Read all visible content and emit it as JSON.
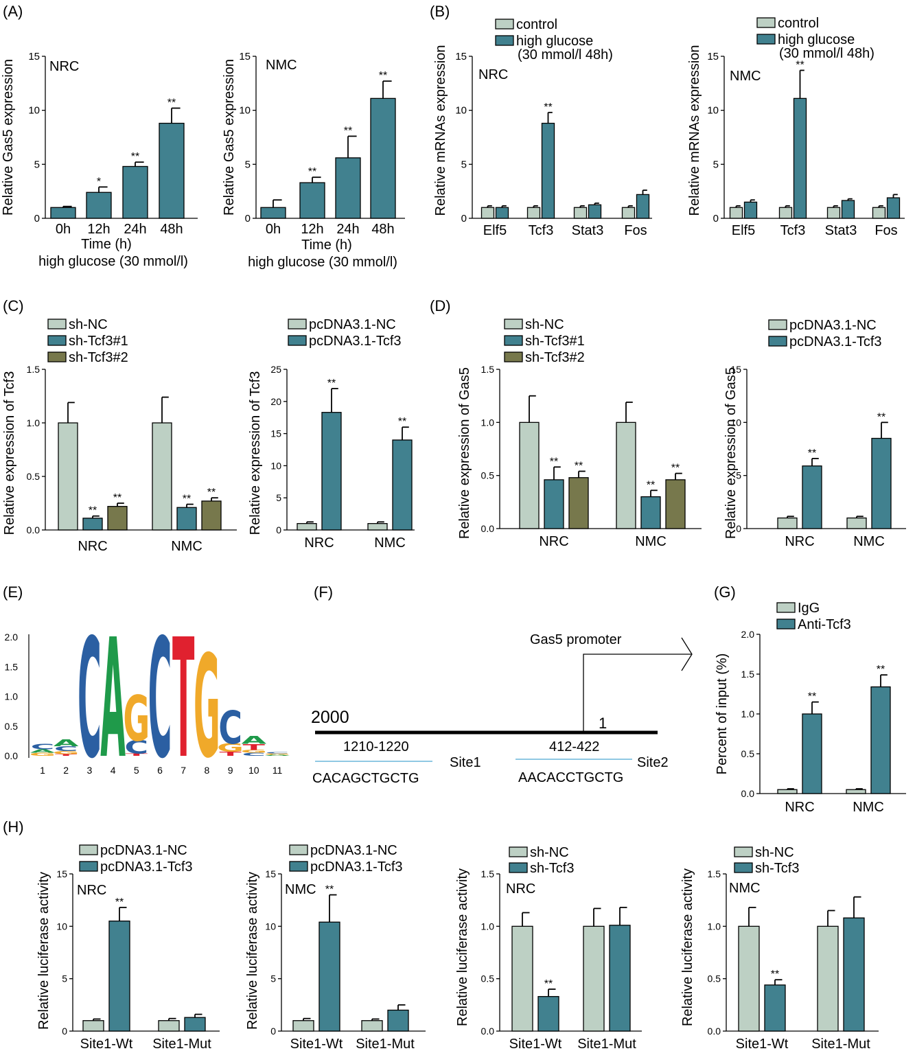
{
  "colors": {
    "control": "#bdd0c4",
    "treat": "#41818f",
    "olive": "#77784c",
    "axis": "#000000",
    "line_blue": "#8fc8e3",
    "logo": {
      "C": "#2b5fa2",
      "A": "#1f9a4a",
      "G": "#f0a92a",
      "T": "#e0212f"
    }
  },
  "panel_letters": [
    "(A)",
    "(B)",
    "(C)",
    "(D)",
    "(E)",
    "(F)",
    "(G)",
    "(H)"
  ],
  "chart_data": [
    {
      "id": "A1",
      "type": "bar",
      "panel": "(A)",
      "ylabel": "Relative Gas5 expression",
      "xlabel": "Time (h)",
      "xlabel2": "high glucose (30 mmol/l)",
      "corner_label": "NRC",
      "ylim": [
        0,
        15
      ],
      "yticks": [
        "0",
        "5",
        "10",
        "15"
      ],
      "categories": [
        "0h",
        "12h",
        "24h",
        "48h"
      ],
      "series": [
        {
          "values": [
            1.0,
            2.4,
            4.8,
            8.8
          ],
          "errors": [
            0.1,
            0.5,
            0.4,
            1.4
          ],
          "sig": [
            "",
            "*",
            "**",
            "**"
          ]
        }
      ]
    },
    {
      "id": "A2",
      "type": "bar",
      "ylabel": "Relative Gas5 expression",
      "xlabel": "Time (h)",
      "xlabel2": "high glucose (30 mmol/l)",
      "corner_label": "NMC",
      "ylim": [
        0,
        15
      ],
      "yticks": [
        "0",
        "5",
        "10",
        "15"
      ],
      "categories": [
        "0h",
        "12h",
        "24h",
        "48h"
      ],
      "series": [
        {
          "values": [
            1.0,
            3.3,
            5.6,
            11.1
          ],
          "errors": [
            0.7,
            0.5,
            2.0,
            1.6
          ],
          "sig": [
            "",
            "**",
            "**",
            "**"
          ]
        }
      ]
    },
    {
      "id": "B1",
      "type": "bar",
      "panel": "(B)",
      "ylabel": "Relative mRNAs expression",
      "corner_label": "NRC",
      "ylim": [
        0,
        15
      ],
      "yticks": [
        "0",
        "5",
        "10",
        "15"
      ],
      "categories": [
        "Elf5",
        "Tcf3",
        "Stat3",
        "Fos"
      ],
      "legend": [
        "control",
        "high glucose",
        "(30 mmol/l 48h)"
      ],
      "series": [
        {
          "name": "control",
          "values": [
            1.0,
            1.0,
            1.0,
            1.0
          ],
          "errors": [
            0.15,
            0.15,
            0.15,
            0.15
          ],
          "sig": [
            "",
            "",
            "",
            ""
          ]
        },
        {
          "name": "high glucose",
          "values": [
            1.0,
            8.8,
            1.25,
            2.2
          ],
          "errors": [
            0.15,
            1.0,
            0.15,
            0.4
          ],
          "sig": [
            "",
            "**",
            "",
            ""
          ]
        }
      ]
    },
    {
      "id": "B2",
      "type": "bar",
      "ylabel": "Relative mRNAs expression",
      "corner_label": "NMC",
      "ylim": [
        0,
        15
      ],
      "yticks": [
        "0",
        "5",
        "10",
        "15"
      ],
      "categories": [
        "Elf5",
        "Tcf3",
        "Stat3",
        "Fos"
      ],
      "legend": [
        "control",
        "high glucose",
        "(30 mmol/l 48h)"
      ],
      "series": [
        {
          "name": "control",
          "values": [
            1.0,
            1.0,
            1.0,
            1.0
          ],
          "errors": [
            0.15,
            0.15,
            0.15,
            0.15
          ],
          "sig": [
            "",
            "",
            "",
            ""
          ]
        },
        {
          "name": "high glucose",
          "values": [
            1.5,
            11.1,
            1.65,
            1.9
          ],
          "errors": [
            0.2,
            2.6,
            0.15,
            0.3
          ],
          "sig": [
            "",
            "**",
            "",
            ""
          ]
        }
      ]
    },
    {
      "id": "C1",
      "type": "bar",
      "panel": "(C)",
      "ylabel": "Relative  expression of Tcf3",
      "ylim": [
        0,
        1.5
      ],
      "yticks": [
        "0.0",
        "0.5",
        "1.0",
        "1.5"
      ],
      "categories": [
        "NRC",
        "NMC"
      ],
      "legend": [
        "sh-NC",
        "sh-Tcf3#1",
        "sh-Tcf3#2"
      ],
      "series": [
        {
          "name": "sh-NC",
          "values": [
            1.0,
            1.0
          ],
          "errors": [
            0.19,
            0.24
          ],
          "sig": [
            "",
            ""
          ]
        },
        {
          "name": "sh-Tcf3#1",
          "values": [
            0.11,
            0.21
          ],
          "errors": [
            0.02,
            0.03
          ],
          "sig": [
            "**",
            "**"
          ]
        },
        {
          "name": "sh-Tcf3#2",
          "values": [
            0.22,
            0.27
          ],
          "errors": [
            0.03,
            0.03
          ],
          "sig": [
            "**",
            "**"
          ]
        }
      ]
    },
    {
      "id": "C2",
      "type": "bar",
      "ylabel": "Relative expression of Tcf3",
      "ylim": [
        0,
        25
      ],
      "yticks": [
        "0",
        "5",
        "10",
        "15",
        "20",
        "25"
      ],
      "categories": [
        "NRC",
        "NMC"
      ],
      "legend": [
        "pcDNA3.1-NC",
        "pcDNA3.1-Tcf3"
      ],
      "series": [
        {
          "name": "pcDNA3.1-NC",
          "values": [
            1.0,
            1.0
          ],
          "errors": [
            0.25,
            0.25
          ],
          "sig": [
            "",
            ""
          ]
        },
        {
          "name": "pcDNA3.1-Tcf3",
          "values": [
            18.3,
            14.0
          ],
          "errors": [
            3.7,
            2.0
          ],
          "sig": [
            "**",
            "**"
          ]
        }
      ]
    },
    {
      "id": "D1",
      "type": "bar",
      "panel": "(D)",
      "ylabel": "Relative expression of Gas5",
      "ylim": [
        0,
        1.5
      ],
      "yticks": [
        "0.0",
        "0.5",
        "1.0",
        "1.5"
      ],
      "categories": [
        "NRC",
        "NMC"
      ],
      "legend": [
        "sh-NC",
        "sh-Tcf3#1",
        "sh-Tcf3#2"
      ],
      "series": [
        {
          "name": "sh-NC",
          "values": [
            1.0,
            1.0
          ],
          "errors": [
            0.25,
            0.19
          ],
          "sig": [
            "",
            ""
          ]
        },
        {
          "name": "sh-Tcf3#1",
          "values": [
            0.46,
            0.3
          ],
          "errors": [
            0.12,
            0.06
          ],
          "sig": [
            "**",
            "**"
          ]
        },
        {
          "name": "sh-Tcf3#2",
          "values": [
            0.48,
            0.46
          ],
          "errors": [
            0.06,
            0.06
          ],
          "sig": [
            "**",
            "**"
          ]
        }
      ]
    },
    {
      "id": "D2",
      "type": "bar",
      "ylabel": "Relative expression of  Gas5",
      "ylim": [
        0,
        15
      ],
      "yticks": [
        "0",
        "5",
        "10",
        "15"
      ],
      "categories": [
        "NRC",
        "NMC"
      ],
      "legend": [
        "pcDNA3.1-NC",
        "pcDNA3.1-Tcf3"
      ],
      "series": [
        {
          "name": "pcDNA3.1-NC",
          "values": [
            1.0,
            1.0
          ],
          "errors": [
            0.15,
            0.15
          ],
          "sig": [
            "",
            ""
          ]
        },
        {
          "name": "pcDNA3.1-Tcf3",
          "values": [
            5.9,
            8.5
          ],
          "errors": [
            0.7,
            1.5
          ],
          "sig": [
            "**",
            "**"
          ]
        }
      ]
    },
    {
      "id": "G",
      "type": "bar",
      "panel": "(G)",
      "ylabel": "Percent of input (%)",
      "ylim": [
        0,
        2.0
      ],
      "yticks": [
        "0.0",
        "0.5",
        "1.0",
        "1.5",
        "2.0"
      ],
      "categories": [
        "NRC",
        "NMC"
      ],
      "legend": [
        "IgG",
        "Anti-Tcf3"
      ],
      "series": [
        {
          "name": "IgG",
          "values": [
            0.05,
            0.05
          ],
          "errors": [
            0.01,
            0.01
          ],
          "sig": [
            "",
            ""
          ]
        },
        {
          "name": "Anti-Tcf3",
          "values": [
            1.0,
            1.34
          ],
          "errors": [
            0.15,
            0.15
          ],
          "sig": [
            "**",
            "**"
          ]
        }
      ]
    },
    {
      "id": "H1",
      "type": "bar",
      "panel": "(H)",
      "ylabel": "Relative luciferase activity",
      "corner_label": "NRC",
      "ylim": [
        0,
        15
      ],
      "yticks": [
        "0",
        "5",
        "10",
        "15"
      ],
      "categories": [
        "Site1-Wt",
        "Site1-Mut"
      ],
      "legend": [
        "pcDNA3.1-NC",
        "pcDNA3.1-Tcf3"
      ],
      "series": [
        {
          "name": "pcDNA3.1-NC",
          "values": [
            1.0,
            1.0
          ],
          "errors": [
            0.15,
            0.2
          ],
          "sig": [
            "",
            ""
          ]
        },
        {
          "name": "pcDNA3.1-Tcf3",
          "values": [
            10.5,
            1.3
          ],
          "errors": [
            1.3,
            0.3
          ],
          "sig": [
            "**",
            ""
          ]
        }
      ]
    },
    {
      "id": "H2",
      "type": "bar",
      "ylabel": "Relative luciferase activity",
      "corner_label": "NMC",
      "ylim": [
        0,
        15
      ],
      "yticks": [
        "0",
        "5",
        "10",
        "15"
      ],
      "categories": [
        "Site1-Wt",
        "Site1-Mut"
      ],
      "legend": [
        "pcDNA3.1-NC",
        "pcDNA3.1-Tcf3"
      ],
      "series": [
        {
          "name": "pcDNA3.1-NC",
          "values": [
            1.0,
            1.0
          ],
          "errors": [
            0.2,
            0.15
          ],
          "sig": [
            "",
            ""
          ]
        },
        {
          "name": "pcDNA3.1-Tcf3",
          "values": [
            10.4,
            2.0
          ],
          "errors": [
            2.6,
            0.5
          ],
          "sig": [
            "**",
            ""
          ]
        }
      ]
    },
    {
      "id": "H3",
      "type": "bar",
      "ylabel": "Relative luciferase activity",
      "corner_label": "NRC",
      "ylim": [
        0,
        1.5
      ],
      "yticks": [
        "0.0",
        "0.5",
        "1.0",
        "1.5"
      ],
      "categories": [
        "Site1-Wt",
        "Site1-Mut"
      ],
      "legend": [
        "sh-NC",
        "sh-Tcf3"
      ],
      "series": [
        {
          "name": "sh-NC",
          "values": [
            1.0,
            1.0
          ],
          "errors": [
            0.13,
            0.17
          ],
          "sig": [
            "",
            ""
          ]
        },
        {
          "name": "sh-Tcf3",
          "values": [
            0.33,
            1.01
          ],
          "errors": [
            0.07,
            0.17
          ],
          "sig": [
            "**",
            ""
          ]
        }
      ]
    },
    {
      "id": "H4",
      "type": "bar",
      "ylabel": "Relative luciferase activity",
      "corner_label": "NMC",
      "ylim": [
        0,
        1.5
      ],
      "yticks": [
        "0.0",
        "0.5",
        "1.0",
        "1.5"
      ],
      "categories": [
        "Site1-Wt",
        "Site1-Mut"
      ],
      "legend": [
        "sh-NC",
        "sh-Tcf3"
      ],
      "series": [
        {
          "name": "sh-NC",
          "values": [
            1.0,
            1.0
          ],
          "errors": [
            0.18,
            0.15
          ],
          "sig": [
            "",
            ""
          ]
        },
        {
          "name": "sh-Tcf3",
          "values": [
            0.44,
            1.08
          ],
          "errors": [
            0.05,
            0.2
          ],
          "sig": [
            "**",
            ""
          ]
        }
      ]
    }
  ],
  "panel_E": {
    "ylim": [
      0,
      2.0
    ],
    "yticks": [
      "0.0",
      "0.5",
      "1.0",
      "1.5",
      "2.0"
    ],
    "positions": [
      "1",
      "2",
      "3",
      "4",
      "5",
      "6",
      "7",
      "8",
      "9",
      "10",
      "11"
    ],
    "logo_bits": [
      [
        [
          "G",
          0.05
        ],
        [
          "A",
          0.06
        ],
        [
          "C",
          0.09
        ]
      ],
      [
        [
          "T",
          0.03
        ],
        [
          "G",
          0.05
        ],
        [
          "C",
          0.08
        ],
        [
          "A",
          0.11
        ]
      ],
      [
        [
          "C",
          2.0
        ]
      ],
      [
        [
          "A",
          2.0
        ]
      ],
      [
        [
          "T",
          0.04
        ],
        [
          "C",
          0.22
        ],
        [
          "G",
          0.76
        ]
      ],
      [
        [
          "C",
          2.0
        ]
      ],
      [
        [
          "T",
          2.0
        ]
      ],
      [
        [
          "G",
          1.72
        ]
      ],
      [
        [
          "T",
          0.07
        ],
        [
          "G",
          0.14
        ],
        [
          "C",
          0.55
        ]
      ],
      [
        [
          "C",
          0.05
        ],
        [
          "G",
          0.05
        ],
        [
          "T",
          0.1
        ],
        [
          "A",
          0.13
        ]
      ],
      [
        [
          "A",
          0.02
        ],
        [
          "G",
          0.02
        ],
        [
          "C",
          0.02
        ]
      ]
    ]
  },
  "panel_F": {
    "promoter_label": "Gas5 promoter",
    "start_label": "2000",
    "end_label": "1",
    "site1": {
      "range": "1210-1220",
      "name": "Site1",
      "sequence": "CACAGCTGCTG"
    },
    "site2": {
      "range": "412-422",
      "name": "Site2",
      "sequence": "AACACCTGCTG"
    }
  }
}
